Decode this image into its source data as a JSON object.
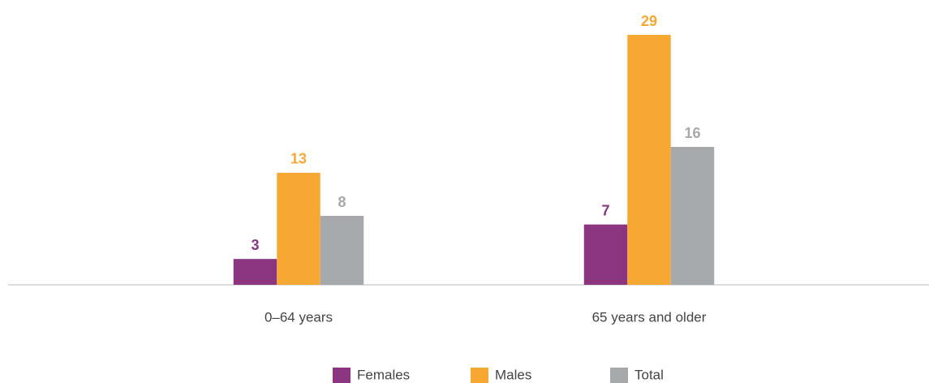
{
  "chart_data": {
    "type": "bar",
    "categories": [
      "0–64 years",
      "65 years and older"
    ],
    "series": [
      {
        "name": "Females",
        "color": "#8b3580",
        "values": [
          3,
          7
        ]
      },
      {
        "name": "Males",
        "color": "#f7a833",
        "values": [
          13,
          29
        ]
      },
      {
        "name": "Total",
        "color": "#a7a8ab",
        "values": [
          8,
          16
        ]
      }
    ],
    "legend": "bottom"
  }
}
